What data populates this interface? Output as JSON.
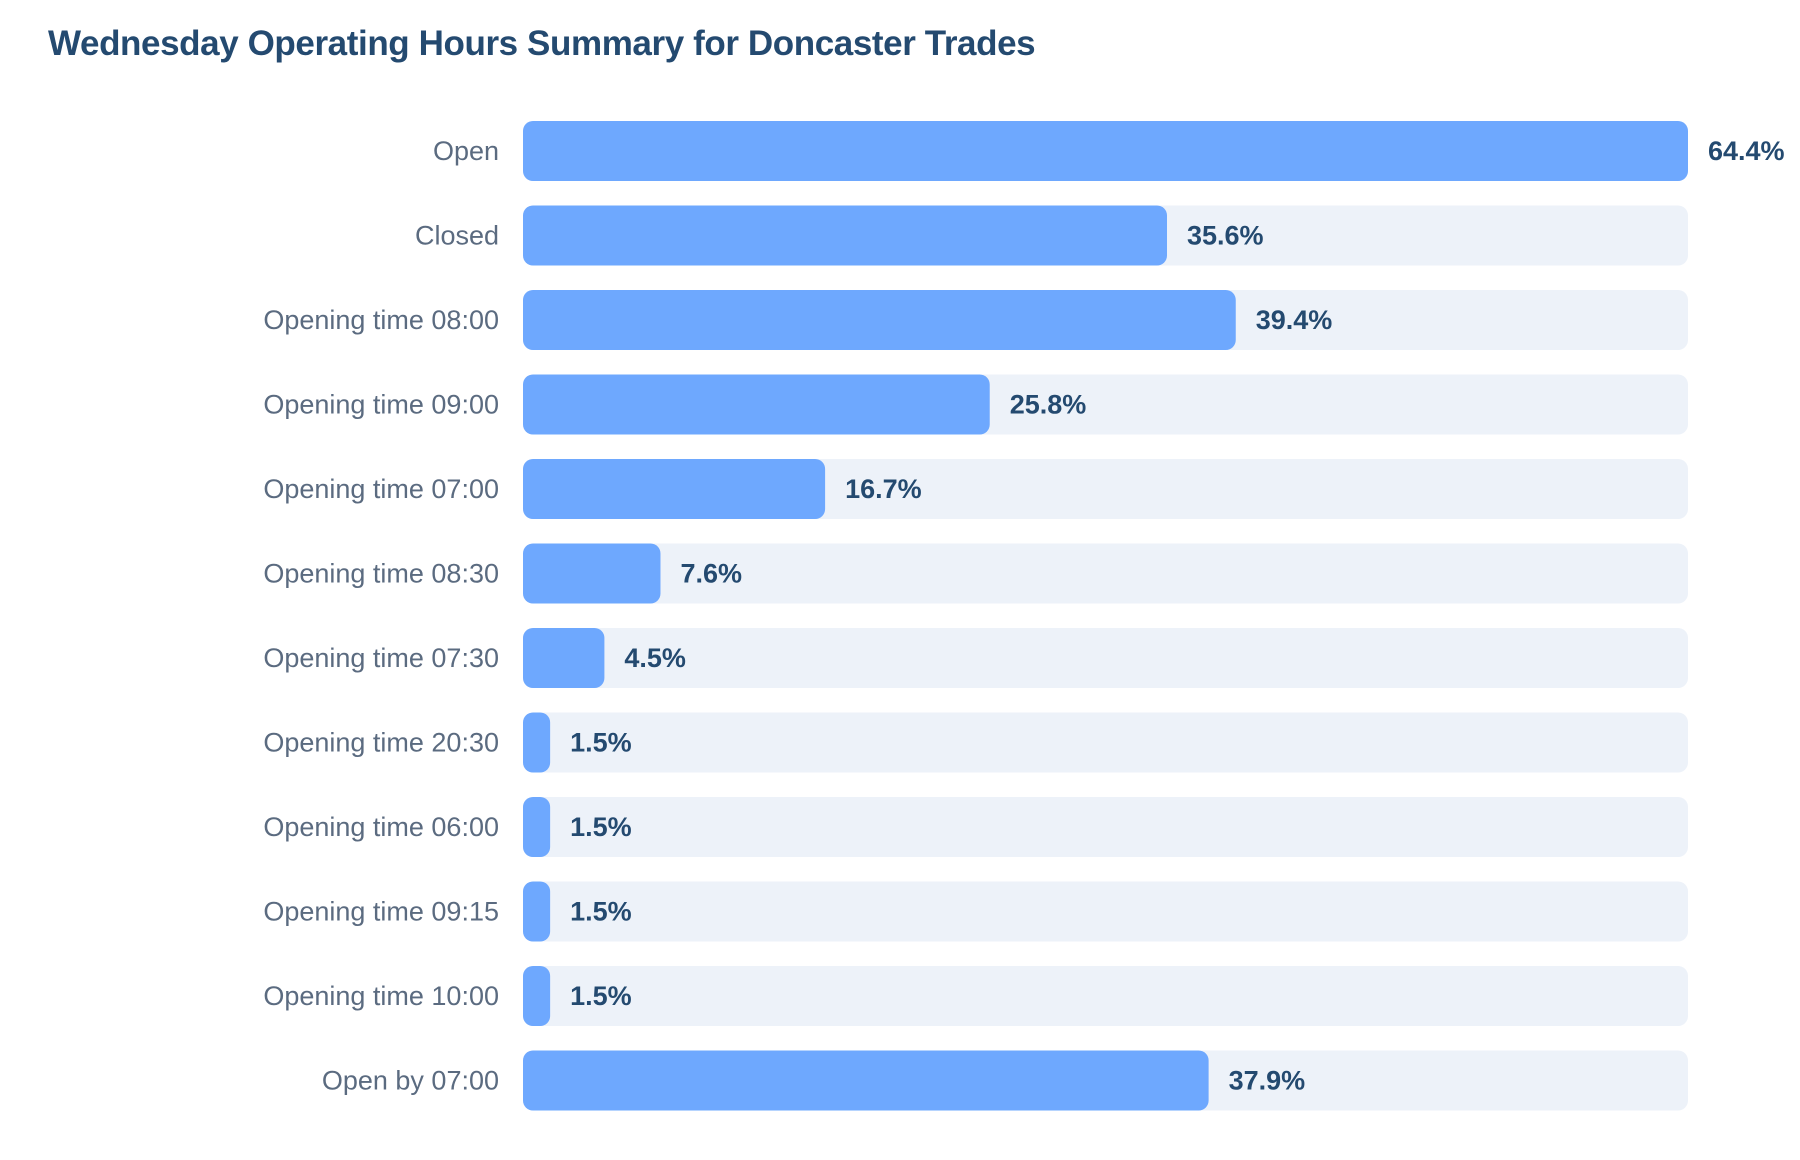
{
  "chart_data": {
    "type": "bar",
    "orientation": "horizontal",
    "title": "Wednesday Operating Hours Summary for Doncaster Trades",
    "categories": [
      "Open",
      "Closed",
      "Opening time 08:00",
      "Opening time 09:00",
      "Opening time 07:00",
      "Opening time 08:30",
      "Opening time 07:30",
      "Opening time 20:30",
      "Opening time 06:00",
      "Opening time 09:15",
      "Opening time 10:00",
      "Open by 07:00"
    ],
    "values": [
      64.4,
      35.6,
      39.4,
      25.8,
      16.7,
      7.6,
      4.5,
      1.5,
      1.5,
      1.5,
      1.5,
      37.9
    ],
    "value_labels": [
      "64.4%",
      "35.6%",
      "39.4%",
      "25.8%",
      "16.7%",
      "7.6%",
      "4.5%",
      "1.5%",
      "1.5%",
      "1.5%",
      "1.5%",
      "37.9%"
    ],
    "unit": "%",
    "xlim": [
      0,
      64.4
    ],
    "grid": false,
    "legend": "none",
    "colors": {
      "bar": "#6ea8fe",
      "track": "#edf2f9",
      "title": "#244a70",
      "category_text": "#5b6b80",
      "value_text": "#244a70"
    }
  }
}
